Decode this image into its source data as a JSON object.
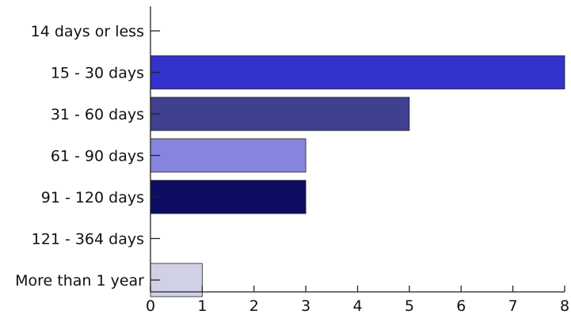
{
  "chart_data": {
    "type": "bar",
    "orientation": "horizontal",
    "categories": [
      "14 days or less",
      "15 - 30 days",
      "31 - 60 days",
      "61 - 90 days",
      "91 - 120 days",
      "121 - 364 days",
      "More than 1 year"
    ],
    "values": [
      0,
      8,
      5,
      3,
      3,
      0,
      1
    ],
    "colors": [
      "#3333cc",
      "#3333cc",
      "#404090",
      "#8585dd",
      "#0c0c60",
      "#3333cc",
      "#d0d1e6"
    ],
    "xlim": [
      0,
      8
    ],
    "xticks": [
      0,
      1,
      2,
      3,
      4,
      5,
      6,
      7,
      8
    ],
    "grid": false,
    "legend": "none"
  }
}
